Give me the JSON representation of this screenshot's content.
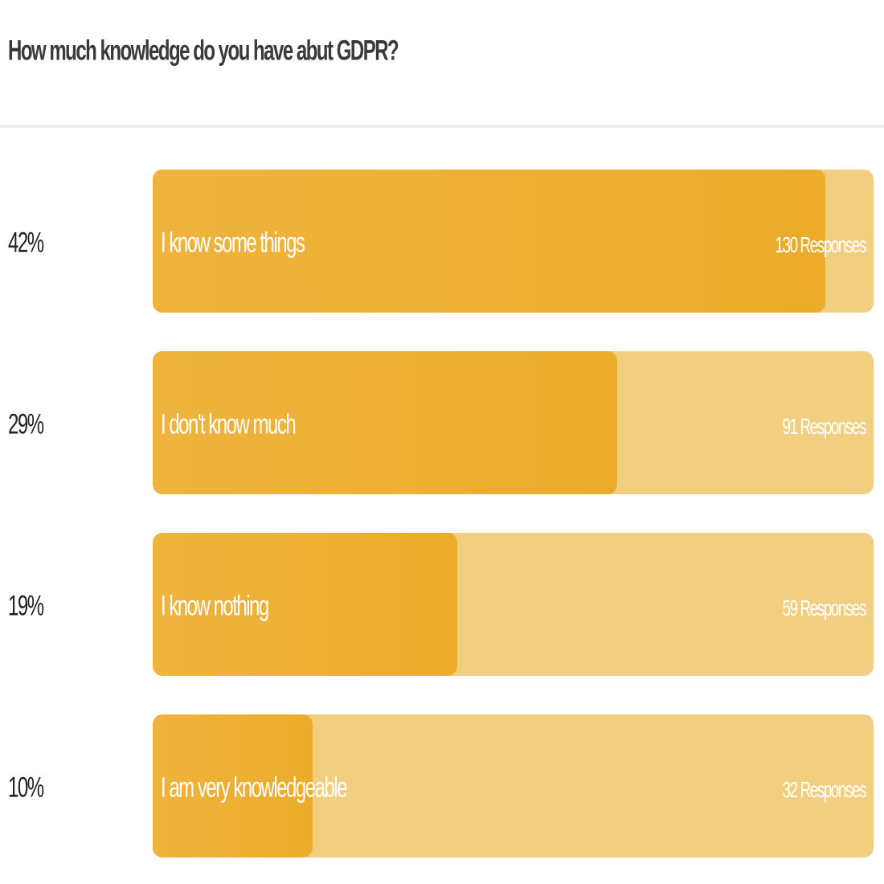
{
  "survey": {
    "question": "How much knowledge do you have abut GDPR?"
  },
  "chart_data": {
    "type": "bar",
    "orientation": "horizontal",
    "title": "How much knowledge do you have abut GDPR?",
    "categories": [
      "I know some things",
      "I don't know much",
      "I know nothing",
      "I am very knowledgeable"
    ],
    "percent_labels": [
      "42%",
      "29%",
      "19%",
      "10%"
    ],
    "values": [
      42,
      29,
      19,
      10
    ],
    "response_labels": [
      "130 Responses",
      "91 Responses",
      "59 Responses",
      "32 Responses"
    ],
    "responses": [
      130,
      91,
      59,
      32
    ],
    "xlim": [
      0,
      100
    ],
    "fill_color": "#ecac2a",
    "track_color": "#f2cf80"
  }
}
